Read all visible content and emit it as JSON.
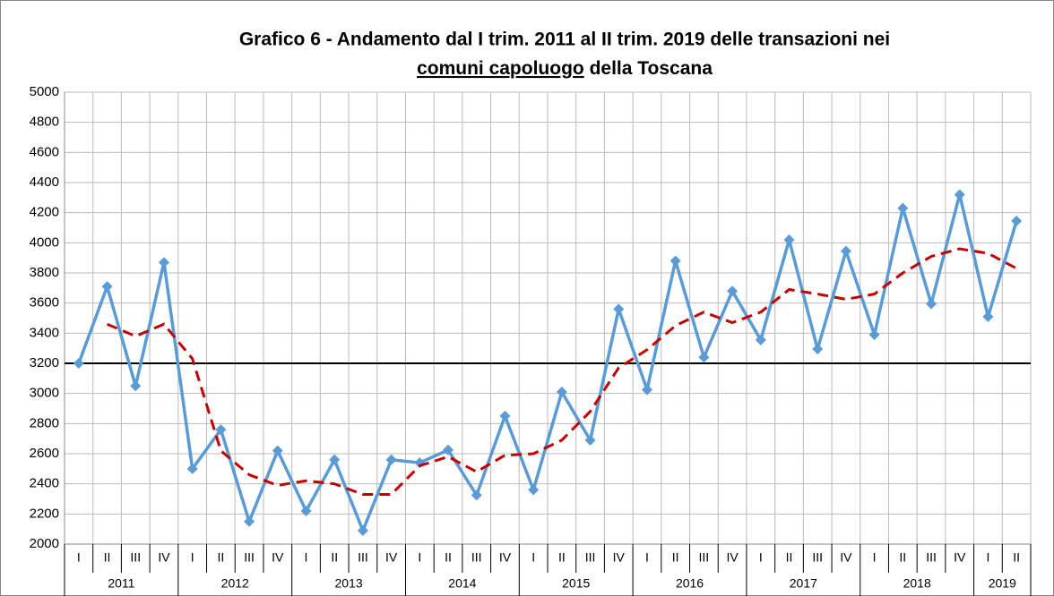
{
  "chart_data": {
    "type": "line",
    "title": {
      "line1": "Grafico 6 - Andamento dal I trim. 2011 al II trim. 2019 delle transazioni nei",
      "underlined": "comuni capoluogo",
      "rest": "della Toscana"
    },
    "categories": [
      "I",
      "II",
      "III",
      "IV",
      "I",
      "II",
      "III",
      "IV",
      "I",
      "II",
      "III",
      "IV",
      "I",
      "II",
      "III",
      "IV",
      "I",
      "II",
      "III",
      "IV",
      "I",
      "II",
      "III",
      "IV",
      "I",
      "II",
      "III",
      "IV",
      "I",
      "II",
      "III",
      "IV",
      "I",
      "II"
    ],
    "years": [
      "2011",
      "2012",
      "2013",
      "2014",
      "2015",
      "2016",
      "2017",
      "2018",
      "2019"
    ],
    "series": [
      {
        "color": "#5b9bd5",
        "style": "solid",
        "marker": "diamond",
        "values": [
          3200,
          3710,
          3050,
          3870,
          2500,
          2760,
          2150,
          2620,
          2220,
          2560,
          2090,
          2560,
          2540,
          2625,
          2325,
          2850,
          2360,
          3010,
          2690,
          3560,
          3025,
          3880,
          3240,
          3680,
          3355,
          4020,
          3295,
          3945,
          3390,
          4230,
          3595,
          4320,
          3510,
          4145
        ]
      },
      {
        "color": "#c00000",
        "style": "dashed",
        "values": [
          null,
          3460,
          3380,
          3460,
          3230,
          2620,
          2460,
          2390,
          2420,
          2400,
          2330,
          2330,
          2520,
          2580,
          2480,
          2590,
          2600,
          2690,
          2880,
          3170,
          3290,
          3450,
          3540,
          3470,
          3540,
          3690,
          3660,
          3625,
          3660,
          3800,
          3910,
          3960,
          3930,
          3830
        ]
      }
    ],
    "hline": 3200,
    "ylim": [
      2000,
      5000
    ],
    "yticks": [
      2000,
      2200,
      2400,
      2600,
      2800,
      3000,
      3200,
      3400,
      3600,
      3800,
      4000,
      4200,
      4400,
      4600,
      4800,
      5000
    ],
    "grid": true
  }
}
